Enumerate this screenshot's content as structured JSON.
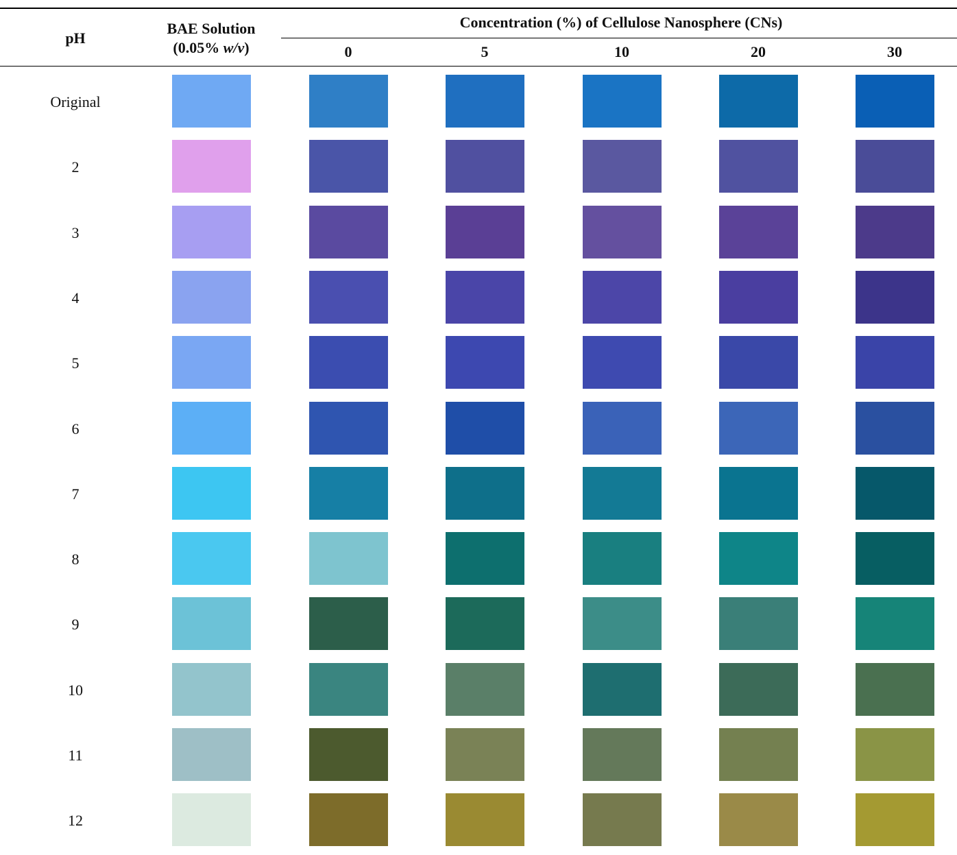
{
  "table": {
    "header": {
      "ph": "pH",
      "bae_title": "BAE Solution",
      "bae_sub": [
        "(0.05% ",
        "w/v",
        ")"
      ],
      "group": "Concentration (%) of Cellulose Nanosphere (CNs)",
      "concentrations": [
        "0",
        "5",
        "10",
        "20",
        "30"
      ]
    },
    "rows": [
      {
        "ph": "Original",
        "colors": [
          "#6fa9f3",
          "#2f7fc6",
          "#1f6fc0",
          "#1a74c4",
          "#0d6aa8",
          "#0a5fb5"
        ]
      },
      {
        "ph": "2",
        "colors": [
          "#e0a0ec",
          "#4a55a8",
          "#5050a0",
          "#5a58a0",
          "#5052a0",
          "#4a4c98"
        ]
      },
      {
        "ph": "3",
        "colors": [
          "#a79ef2",
          "#5a4aa0",
          "#5a3f95",
          "#64509f",
          "#5a4298",
          "#4c3a8a"
        ]
      },
      {
        "ph": "4",
        "colors": [
          "#8aa3f0",
          "#4a4fb0",
          "#4a45a8",
          "#4c46a8",
          "#4a3ea0",
          "#3c348a"
        ]
      },
      {
        "ph": "5",
        "colors": [
          "#7aa7f3",
          "#3b4db0",
          "#3d48b0",
          "#3e4ab0",
          "#3a48a8",
          "#3a44a8"
        ]
      },
      {
        "ph": "6",
        "colors": [
          "#5caff6",
          "#2f55b0",
          "#1f4ea8",
          "#3a62b8",
          "#3c66b8",
          "#2a50a0"
        ]
      },
      {
        "ph": "7",
        "colors": [
          "#3dc6f2",
          "#167fa5",
          "#0e6f8a",
          "#137a95",
          "#0a7490",
          "#06586a"
        ]
      },
      {
        "ph": "8",
        "colors": [
          "#4ac8f0",
          "#7ec4cf",
          "#0d6f6e",
          "#197f80",
          "#0e8588",
          "#075e62"
        ]
      },
      {
        "ph": "9",
        "colors": [
          "#6cc2d7",
          "#2c5e4a",
          "#1c6a5a",
          "#3c8d88",
          "#3a7f78",
          "#168478"
        ]
      },
      {
        "ph": "10",
        "colors": [
          "#93c4cc",
          "#3a8580",
          "#5a7f68",
          "#1e6e70",
          "#3c6b58",
          "#4a7050"
        ]
      },
      {
        "ph": "11",
        "colors": [
          "#9ebfc6",
          "#4c5a2e",
          "#7a8256",
          "#64795a",
          "#748050",
          "#8a9446"
        ]
      },
      {
        "ph": "12",
        "colors": [
          "#dceae0",
          "#7d6c2a",
          "#9a8a32",
          "#767a4e",
          "#9a8a48",
          "#a49a32"
        ]
      }
    ]
  }
}
